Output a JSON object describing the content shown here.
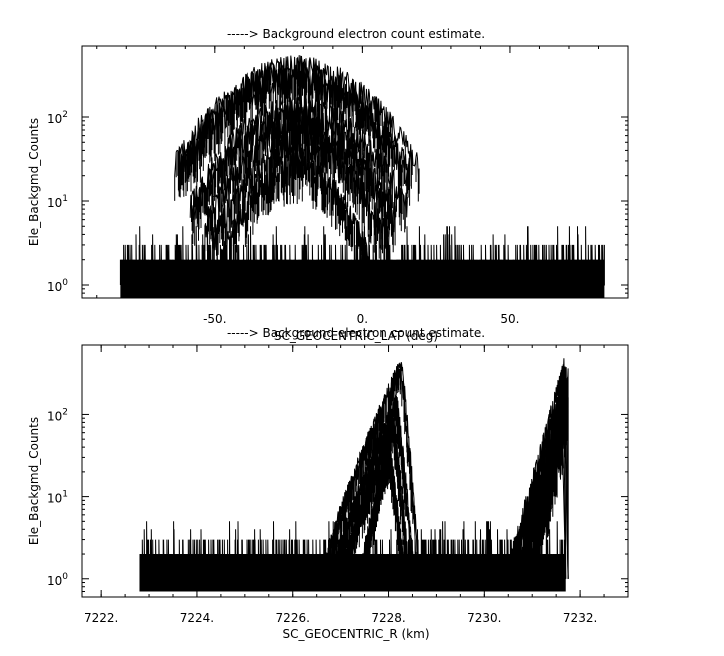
{
  "chart_data": [
    {
      "type": "histogram-line",
      "title": "-----> Background electron count estimate.",
      "xlabel": "SC_GEOCENTRIC_LAT (deg)",
      "ylabel": "Ele_Backgmd_Counts",
      "xlim": [
        -95,
        90
      ],
      "ylim_log": [
        0.7,
        700
      ],
      "yscale": "log",
      "x_ticks": [
        -50,
        0,
        50
      ],
      "x_tick_labels": [
        "-50.",
        "0.",
        "50."
      ],
      "y_ticks": [
        1,
        10,
        100
      ],
      "y_tick_labels": [
        "10",
        "10",
        "10"
      ],
      "y_tick_exponents": [
        "0",
        "1",
        "2"
      ],
      "x_data_range": [
        -82,
        82
      ],
      "baseline_counts": [
        1,
        2,
        3
      ],
      "baseline_max_spikes": 5,
      "peak_center": -22,
      "series": [
        {
          "peak": 420,
          "width": 18
        },
        {
          "peak": 360,
          "width": 17
        },
        {
          "peak": 300,
          "width": 17
        },
        {
          "peak": 140,
          "width": 16
        },
        {
          "peak": 110,
          "width": 15
        },
        {
          "peak": 80,
          "width": 14
        },
        {
          "peak": 50,
          "width": 13
        },
        {
          "peak": 30,
          "width": 11
        }
      ],
      "grid": false
    },
    {
      "type": "histogram-line",
      "title": "-----> Background electron count estimate.",
      "xlabel": "SC_GEOCENTRIC_R (km)",
      "ylabel": "Ele_Backgmd_Counts",
      "xlim": [
        7221.6,
        7233.0
      ],
      "ylim_log": [
        0.6,
        700
      ],
      "yscale": "log",
      "x_ticks": [
        7222,
        7224,
        7226,
        7228,
        7230,
        7232
      ],
      "x_tick_labels": [
        "7222.",
        "7224.",
        "7226.",
        "7228.",
        "7230.",
        "7232."
      ],
      "y_ticks": [
        1,
        10,
        100
      ],
      "y_tick_labels": [
        "10",
        "10",
        "10"
      ],
      "y_tick_exponents": [
        "0",
        "1",
        "2"
      ],
      "x_data_range": [
        7222.8,
        7231.7
      ],
      "baseline_counts": [
        1,
        2,
        3
      ],
      "baseline_max_spikes": 5,
      "arcs": [
        {
          "x_start": 7226.6,
          "x_end": 7228.6,
          "peak_x": 7228.25,
          "peak": 420
        },
        {
          "x_start": 7226.8,
          "x_end": 7228.5,
          "peak_x": 7228.15,
          "peak": 150
        },
        {
          "x_start": 7227.0,
          "x_end": 7228.4,
          "peak_x": 7228.1,
          "peak": 80
        },
        {
          "x_start": 7227.4,
          "x_end": 7228.3,
          "peak_x": 7228.0,
          "peak": 40
        }
      ],
      "ramps": [
        {
          "x_start": 7230.5,
          "x_end": 7231.75,
          "peak": 380
        },
        {
          "x_start": 7230.7,
          "x_end": 7231.75,
          "peak": 200
        },
        {
          "x_start": 7230.9,
          "x_end": 7231.7,
          "peak": 100
        }
      ],
      "grid": false
    }
  ]
}
